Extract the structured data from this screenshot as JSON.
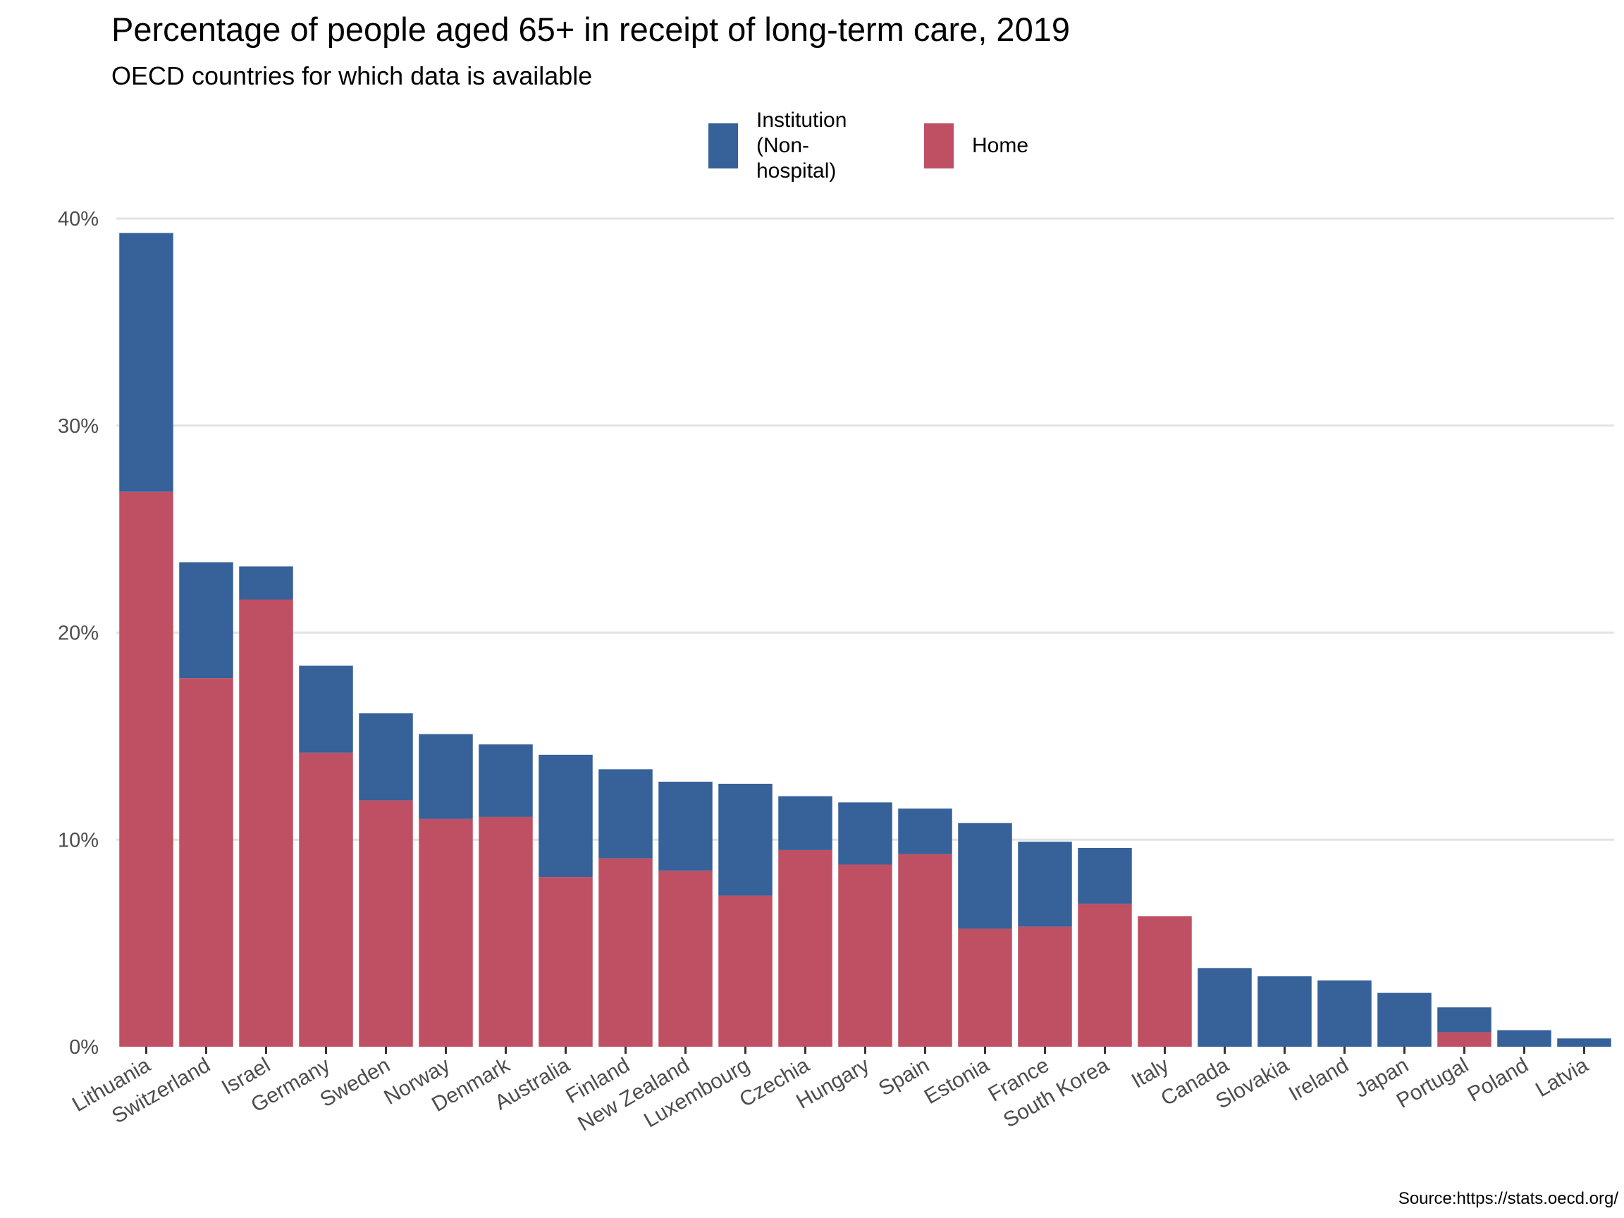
{
  "title": "Percentage of people aged 65+ in receipt of long-term care, 2019",
  "subtitle": "OECD countries for which data is available",
  "source": "Source:https://stats.oecd.org/",
  "colors": {
    "institution": "#366199",
    "home": "#bf5063",
    "grid": "#e3e3e3",
    "axis_text": "#4d4d4d"
  },
  "legend": {
    "placement": "top-center",
    "items": [
      {
        "label": "Institution\n(Non-hospital)",
        "color": "#366199"
      },
      {
        "label": "Home",
        "color": "#bf5063"
      }
    ]
  },
  "chart_data": {
    "type": "bar",
    "stacked": true,
    "categories": [
      "Lithuania",
      "Switzerland",
      "Israel",
      "Germany",
      "Sweden",
      "Norway",
      "Denmark",
      "Australia",
      "Finland",
      "New Zealand",
      "Luxembourg",
      "Czechia",
      "Hungary",
      "Spain",
      "Estonia",
      "France",
      "South Korea",
      "Italy",
      "Canada",
      "Slovakia",
      "Ireland",
      "Japan",
      "Portugal",
      "Poland",
      "Latvia"
    ],
    "series": [
      {
        "name": "Home",
        "values": [
          26.8,
          17.8,
          21.6,
          14.2,
          11.9,
          11.0,
          11.1,
          8.2,
          9.1,
          8.5,
          7.3,
          9.5,
          8.8,
          9.3,
          5.7,
          5.8,
          6.9,
          6.3,
          0,
          0,
          0,
          0,
          0.7,
          0,
          0
        ]
      },
      {
        "name": "Institution\n(Non-hospital)",
        "values": [
          12.5,
          5.6,
          1.6,
          4.2,
          4.2,
          4.1,
          3.5,
          5.9,
          4.3,
          4.3,
          5.4,
          2.6,
          3.0,
          2.2,
          5.1,
          4.1,
          2.7,
          0,
          3.8,
          3.4,
          3.2,
          2.6,
          1.2,
          0.8,
          0.4
        ]
      }
    ],
    "yticks": [
      "0%",
      "10%",
      "20%",
      "30%",
      "40%"
    ],
    "ytick_values": [
      0,
      10,
      20,
      30,
      40
    ],
    "ylim": [
      0,
      40
    ],
    "grid": true,
    "xlabel": "",
    "ylabel": ""
  }
}
